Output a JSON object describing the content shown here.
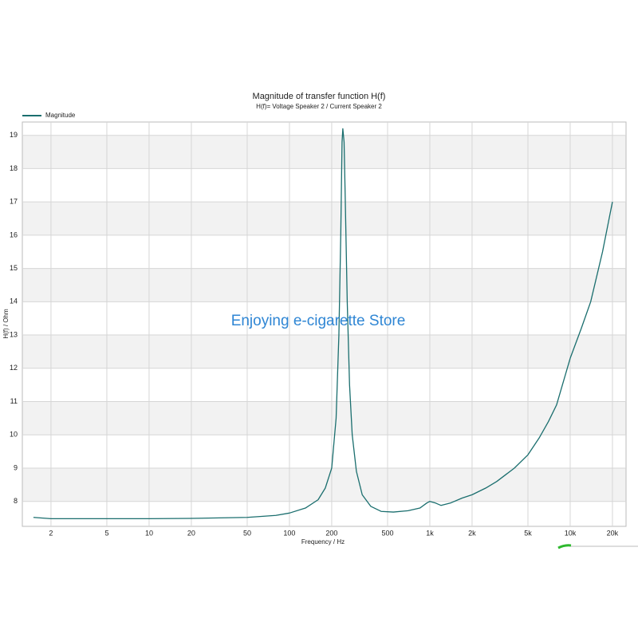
{
  "chart_data": {
    "type": "line",
    "title": "Magnitude of transfer function H(f)",
    "subtitle": "H(f)= Voltage Speaker 2 / Current Speaker 2",
    "x_label": "Frequency / Hz",
    "y_label": "H(f) / Ohm",
    "watermark": "Enjoying e-cigarette Store",
    "x_scale": "log",
    "legend": "top-left",
    "grid": true,
    "xlim": [
      1.25,
      25000
    ],
    "ylim": [
      7.25,
      19.4
    ],
    "xticks": [
      2,
      5,
      10,
      20,
      50,
      100,
      200,
      500,
      {
        "value": 1000,
        "label": "1k"
      },
      {
        "value": 2000,
        "label": "2k"
      },
      {
        "value": 5000,
        "label": "5k"
      },
      {
        "value": 10000,
        "label": "10k"
      },
      {
        "value": 20000,
        "label": "20k"
      }
    ],
    "yticks": [
      8,
      9,
      10,
      11,
      12,
      13,
      14,
      15,
      16,
      17,
      18,
      19
    ],
    "series": [
      {
        "name": "Magnitude",
        "color": "#1a6e6e",
        "x": [
          1.5,
          2,
          5,
          10,
          20,
          50,
          80,
          100,
          130,
          160,
          180,
          200,
          215,
          225,
          232,
          237,
          240,
          245,
          250,
          258,
          268,
          280,
          300,
          330,
          380,
          450,
          550,
          700,
          850,
          950,
          1000,
          1100,
          1200,
          1400,
          1700,
          2000,
          2500,
          3000,
          4000,
          5000,
          6000,
          7000,
          8000,
          10000,
          12000,
          14000,
          17000,
          20000
        ],
        "values": [
          7.52,
          7.48,
          7.48,
          7.48,
          7.49,
          7.52,
          7.58,
          7.65,
          7.8,
          8.05,
          8.4,
          9.0,
          10.5,
          13,
          16,
          18.8,
          19.2,
          18.8,
          17,
          14,
          11.5,
          10,
          8.9,
          8.2,
          7.85,
          7.7,
          7.68,
          7.72,
          7.8,
          7.95,
          8.0,
          7.95,
          7.88,
          7.95,
          8.1,
          8.2,
          8.4,
          8.6,
          9.0,
          9.4,
          9.9,
          10.4,
          10.9,
          12.3,
          13.2,
          14.0,
          15.5,
          17.0
        ]
      }
    ]
  }
}
